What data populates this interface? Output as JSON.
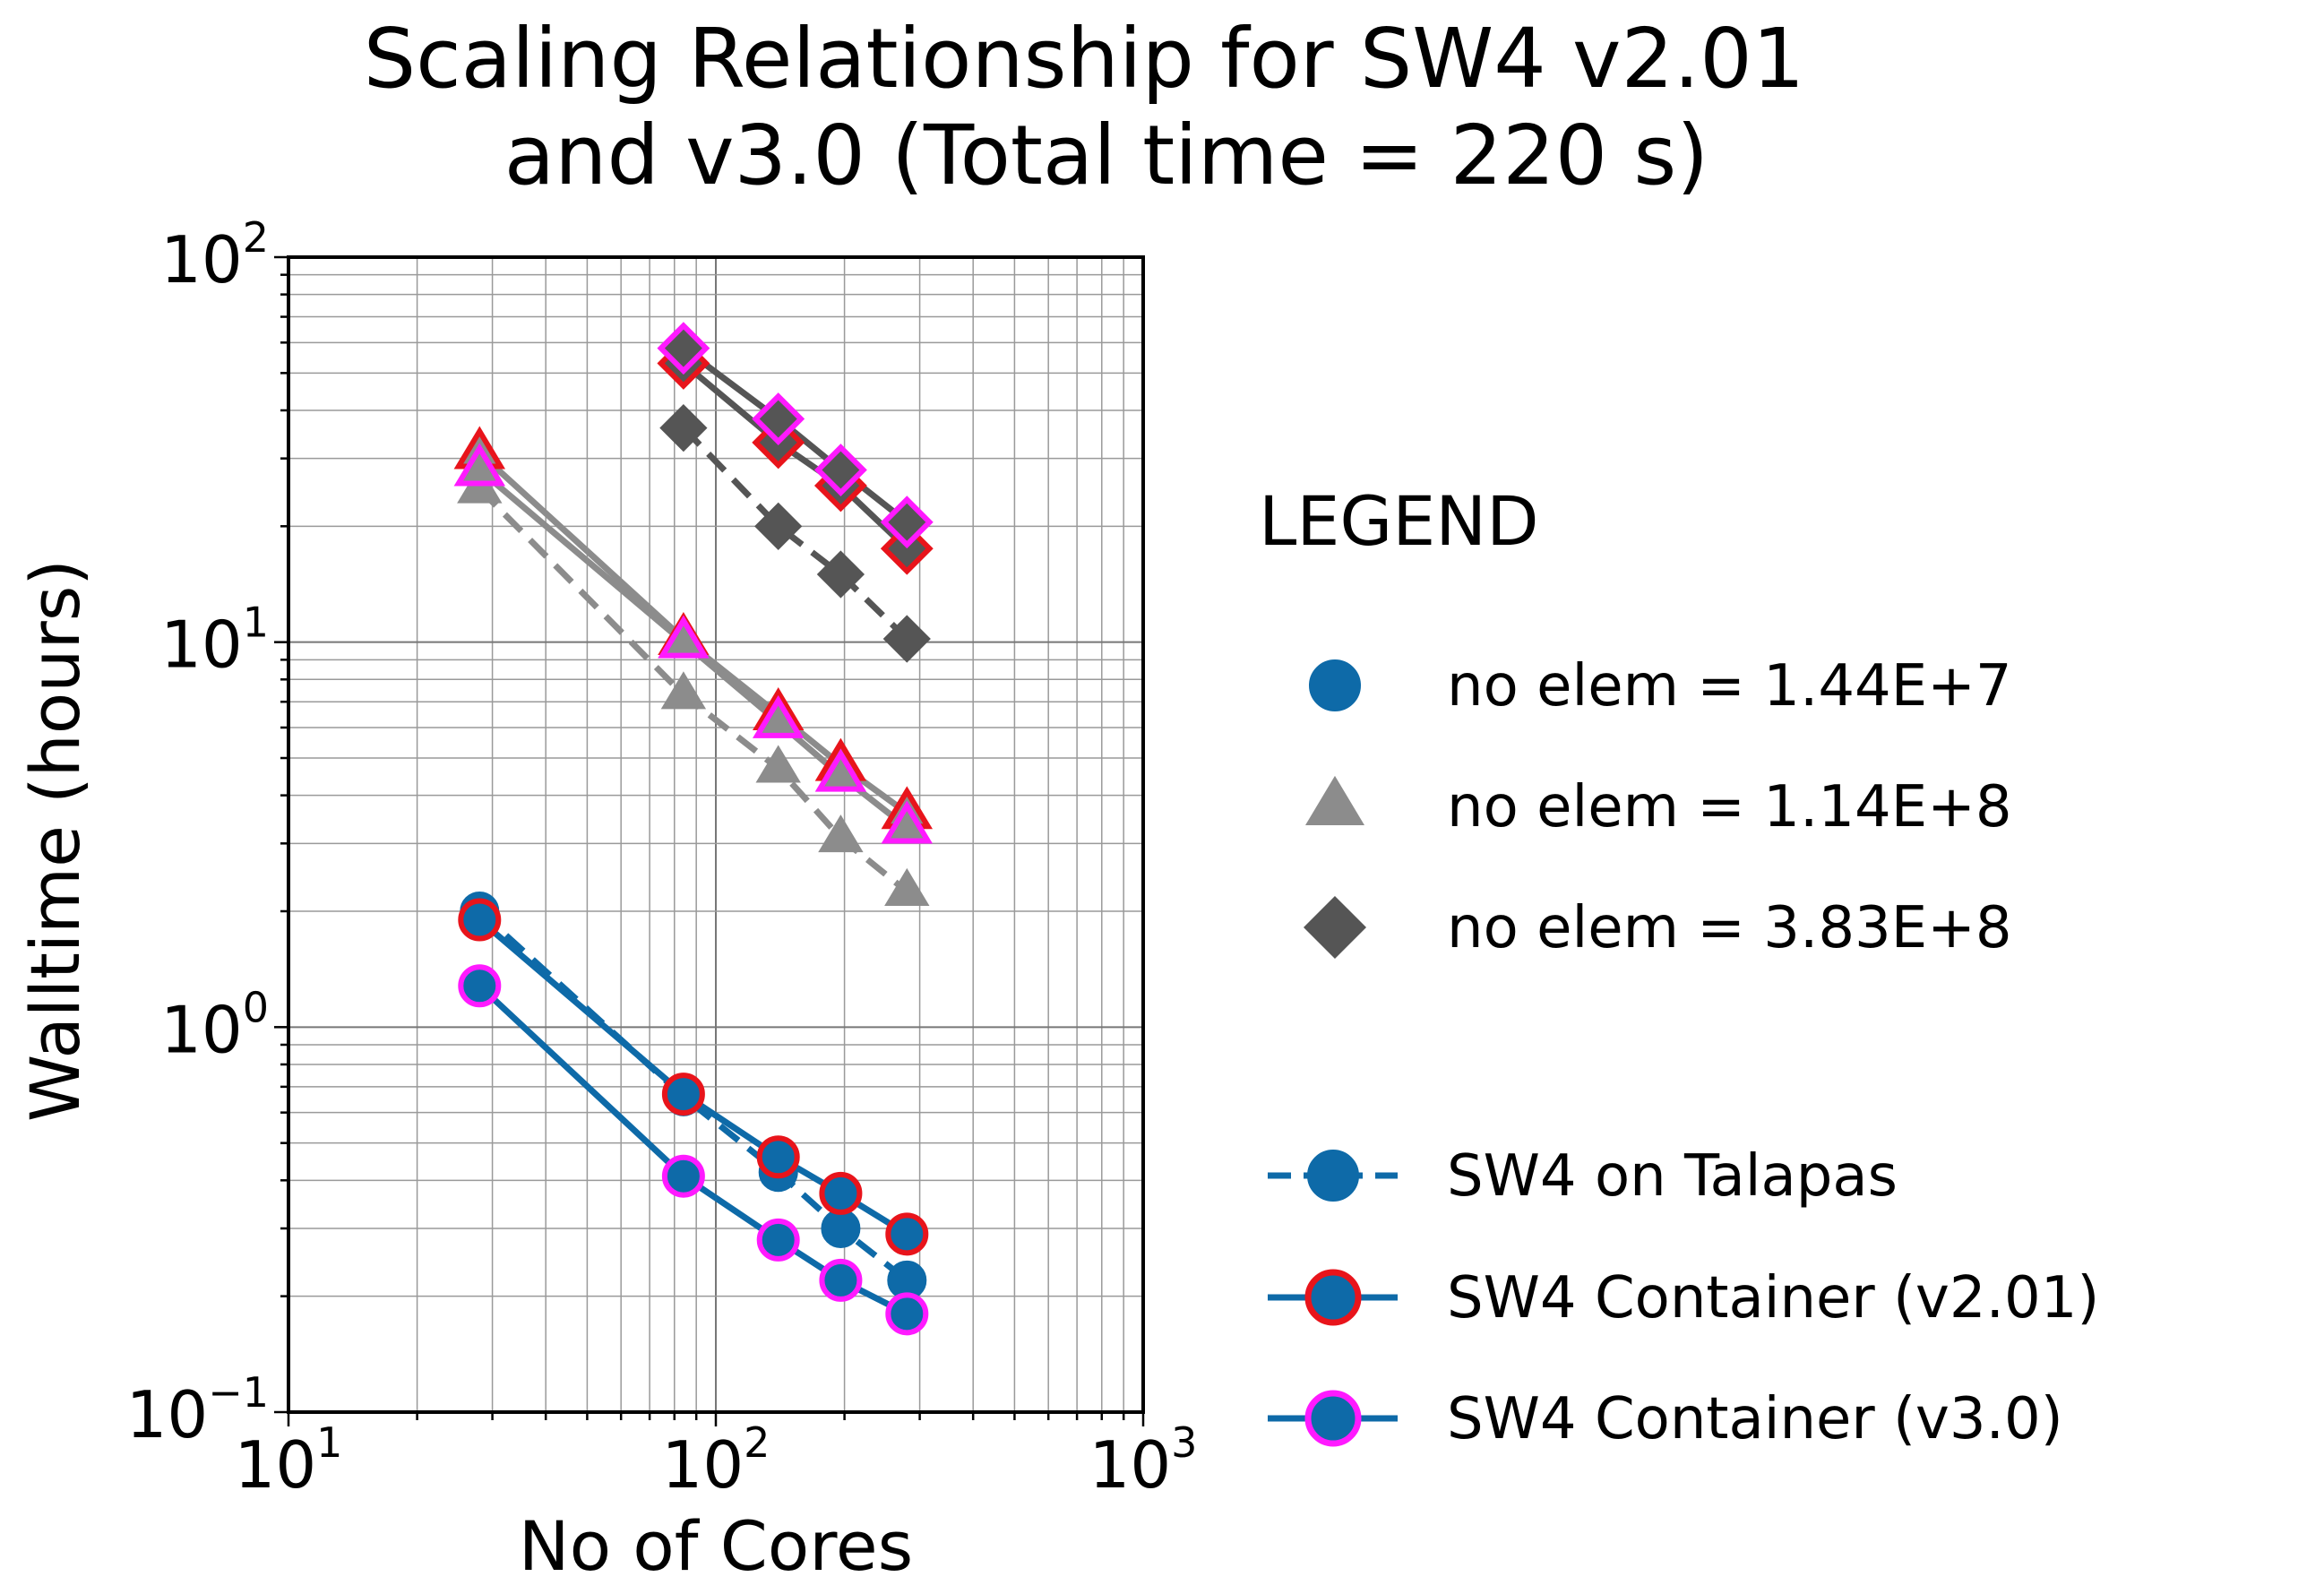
{
  "chart_data": {
    "type": "line",
    "title": [
      "Scaling Relationship for SW4 v2.01",
      "and v3.0 (Total time = 220 s)"
    ],
    "xlabel": "No of Cores",
    "ylabel": "Walltime (hours)",
    "xscale": "log",
    "yscale": "log",
    "xlim": [
      10,
      1000
    ],
    "ylim": [
      0.1,
      100
    ],
    "grid": true,
    "x_ticks": [
      {
        "base": "10",
        "exp": "1",
        "value": 10
      },
      {
        "base": "10",
        "exp": "2",
        "value": 100
      },
      {
        "base": "10",
        "exp": "3",
        "value": 1000
      }
    ],
    "y_ticks": [
      {
        "base": "10",
        "exp": "−1",
        "value": 0.1
      },
      {
        "base": "10",
        "exp": "0",
        "value": 1
      },
      {
        "base": "10",
        "exp": "1",
        "value": 10
      },
      {
        "base": "10",
        "exp": "2",
        "value": 100
      }
    ],
    "legend": {
      "title": "LEGEND",
      "placement": "right",
      "marker_entries": [
        {
          "label": "no elem = 1.44E+7",
          "marker": "circle",
          "color": "#0e6aa8"
        },
        {
          "label": "no elem = 1.14E+8",
          "marker": "triangle",
          "color": "#8c8c8c"
        },
        {
          "label": "no elem = 3.83E+8",
          "marker": "diamond",
          "color": "#555555"
        }
      ],
      "style_entries": [
        {
          "label": "SW4 on Talapas",
          "dash": true,
          "edge": "#0e6aa8"
        },
        {
          "label": "SW4 Container (v2.01)",
          "dash": false,
          "edge": "#e8141b"
        },
        {
          "label": "SW4 Container (v3.0)",
          "dash": false,
          "edge": "#ff1aff"
        }
      ]
    },
    "series": [
      {
        "group": "no elem = 1.44E+7",
        "style": "SW4 on Talapas",
        "marker": "circle",
        "color": "#0e6aa8",
        "edge": "#0e6aa8",
        "dash": true,
        "x": [
          28,
          84,
          140,
          196,
          280
        ],
        "y": [
          2.0,
          0.66,
          0.42,
          0.3,
          0.22
        ]
      },
      {
        "group": "no elem = 1.44E+7",
        "style": "SW4 Container (v2.01)",
        "marker": "circle",
        "color": "#0e6aa8",
        "edge": "#e8141b",
        "dash": false,
        "x": [
          28,
          84,
          140,
          196,
          280
        ],
        "y": [
          1.9,
          0.67,
          0.46,
          0.37,
          0.29
        ]
      },
      {
        "group": "no elem = 1.44E+7",
        "style": "SW4 Container (v3.0)",
        "marker": "circle",
        "color": "#0e6aa8",
        "edge": "#ff1aff",
        "dash": false,
        "x": [
          28,
          84,
          140,
          196,
          280
        ],
        "y": [
          1.28,
          0.41,
          0.28,
          0.22,
          0.18
        ]
      },
      {
        "group": "no elem = 1.14E+8",
        "style": "SW4 on Talapas",
        "marker": "triangle",
        "color": "#8c8c8c",
        "edge": "#8c8c8c",
        "dash": true,
        "x": [
          28,
          84,
          140,
          196,
          280
        ],
        "y": [
          25,
          7.3,
          4.7,
          3.1,
          2.25
        ]
      },
      {
        "group": "no elem = 1.14E+8",
        "style": "SW4 Container (v2.01)",
        "marker": "triangle",
        "color": "#8c8c8c",
        "edge": "#e8141b",
        "dash": false,
        "x": [
          28,
          84,
          140,
          196,
          280
        ],
        "y": [
          31,
          10.2,
          6.5,
          4.8,
          3.6
        ]
      },
      {
        "group": "no elem = 1.14E+8",
        "style": "SW4 Container (v3.0)",
        "marker": "triangle",
        "color": "#8c8c8c",
        "edge": "#ff1aff",
        "dash": false,
        "x": [
          28,
          84,
          140,
          196,
          280
        ],
        "y": [
          28,
          10.0,
          6.2,
          4.5,
          3.3
        ]
      },
      {
        "group": "no elem = 3.83E+8",
        "style": "SW4 on Talapas",
        "marker": "diamond",
        "color": "#555555",
        "edge": "#555555",
        "dash": true,
        "x": [
          84,
          140,
          196,
          280
        ],
        "y": [
          36,
          20,
          15,
          10.2
        ]
      },
      {
        "group": "no elem = 3.83E+8",
        "style": "SW4 Container (v2.01)",
        "marker": "diamond",
        "color": "#555555",
        "edge": "#e8141b",
        "dash": false,
        "x": [
          84,
          140,
          196,
          280
        ],
        "y": [
          53,
          33,
          25.5,
          17.5
        ]
      },
      {
        "group": "no elem = 3.83E+8",
        "style": "SW4 Container (v3.0)",
        "marker": "diamond",
        "color": "#555555",
        "edge": "#ff1aff",
        "dash": false,
        "x": [
          84,
          140,
          196,
          280
        ],
        "y": [
          58,
          38,
          28,
          20.5
        ]
      }
    ]
  }
}
